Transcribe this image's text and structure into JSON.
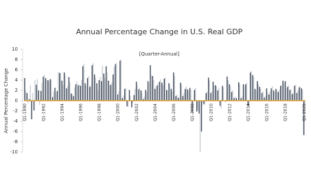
{
  "chart_data": {
    "type": "bar",
    "title": "Annual Percentage Change in U.S. Real GDP",
    "subtitle": "[Quarter-Annual]",
    "y_label": "Annual Percentage Change",
    "categories": [
      "Q1-1990",
      null,
      null,
      null,
      null,
      null,
      null,
      null,
      "Q1-1992",
      null,
      null,
      null,
      null,
      null,
      null,
      null,
      "Q1-1994",
      null,
      null,
      null,
      null,
      null,
      null,
      null,
      "Q1-1996",
      null,
      null,
      null,
      null,
      null,
      null,
      null,
      "Q1-1998",
      null,
      null,
      null,
      null,
      null,
      null,
      null,
      "Q1-2000",
      null,
      null,
      null,
      null,
      null,
      null,
      null,
      "Q1-2002",
      null,
      null,
      null,
      null,
      null,
      null,
      null,
      "Q1-2004",
      null,
      null,
      null,
      null,
      null,
      null,
      null,
      "Q1-2006",
      null,
      null,
      null,
      null,
      null,
      null,
      null,
      "Q1-2008",
      null,
      null,
      null,
      null,
      null,
      null,
      null,
      "Q1-2010",
      null,
      null,
      null,
      null,
      null,
      null,
      null,
      "Q1-2012",
      null,
      null,
      null,
      null,
      null,
      null,
      null,
      "Q1-2014",
      null,
      null,
      null,
      null,
      null,
      null,
      null,
      "Q1-2016",
      null,
      null,
      null,
      null,
      null,
      null,
      null,
      "Q1-2018",
      null,
      null,
      null,
      null,
      null,
      null,
      null,
      "Q1-2020"
    ],
    "series": [
      {
        "color": "#3b4656",
        "values": [
          4.4,
          1.5,
          0.3,
          -3.6,
          -1.9,
          3.1,
          2.0,
          1.9,
          4.7,
          4.4,
          4.0,
          4.2,
          0.7,
          2.5,
          1.9,
          5.4,
          3.9,
          5.5,
          2.4,
          4.6,
          1.4,
          0.9,
          3.2,
          3.0,
          2.9,
          6.7,
          3.4,
          4.4,
          2.7,
          6.9,
          5.1,
          3.4,
          4.0,
          3.8,
          5.3,
          6.7,
          3.9,
          3.1,
          5.1,
          7.1,
          1.2,
          7.8,
          0.5,
          2.3,
          -1.1,
          2.1,
          -1.3,
          1.1,
          3.7,
          2.2,
          2.0,
          0.3,
          2.1,
          3.8,
          6.9,
          4.8,
          2.3,
          3.0,
          3.7,
          3.5,
          4.3,
          2.1,
          3.4,
          2.3,
          5.5,
          0.9,
          0.6,
          3.5,
          0.9,
          2.3,
          2.2,
          2.5,
          -2.3,
          2.1,
          -2.1,
          -2.5,
          -6.0,
          -0.6,
          1.5,
          4.5,
          1.5,
          3.7,
          3.0,
          2.0,
          -1.0,
          2.9,
          -0.1,
          4.7,
          3.2,
          1.7,
          0.5,
          0.5,
          3.6,
          0.5,
          3.2,
          3.2,
          -1.1,
          5.5,
          5.0,
          2.3,
          3.8,
          2.7,
          1.5,
          0.6,
          2.4,
          1.2,
          2.4,
          2.0,
          2.3,
          1.7,
          2.9,
          3.9,
          3.8,
          2.7,
          2.1,
          1.3,
          2.9,
          1.5,
          2.6,
          2.4,
          -6.7
        ]
      },
      {
        "color": "#c9cdd3",
        "values": [
          2.0,
          -0.5,
          3.0,
          1.5,
          4.0,
          4.2,
          -0.8,
          3.5,
          5.0,
          4.0,
          3.8,
          4.1,
          1.8,
          1.5,
          5.6,
          5.4,
          3.0,
          5.0,
          2.8,
          3.6,
          1.2,
          2.6,
          3.8,
          3.2,
          4.0,
          7.2,
          3.0,
          4.8,
          3.0,
          7.3,
          4.5,
          2.0,
          4.6,
          6.8,
          4.5,
          5.5,
          3.0,
          3.6,
          6.6,
          7.4,
          1.8,
          8.0,
          1.0,
          2.5,
          -1.2,
          1.0,
          -0.5,
          2.3,
          3.0,
          2.5,
          1.5,
          0.8,
          1.7,
          3.5,
          5.0,
          4.0,
          2.8,
          3.5,
          4.2,
          3.0,
          4.5,
          2.0,
          3.0,
          1.8,
          4.8,
          1.2,
          0.4,
          3.1,
          1.5,
          2.8,
          2.0,
          2.2,
          -1.5,
          2.5,
          -1.8,
          -10.0,
          -1.0,
          -0.8,
          1.8,
          4.0,
          1.8,
          3.0,
          2.8,
          2.5,
          -1.5,
          2.6,
          -0.3,
          4.0,
          2.8,
          2.0,
          0.8,
          0.2,
          3.2,
          0.8,
          3.0,
          3.5,
          -1.0,
          5.8,
          4.6,
          2.0,
          3.2,
          2.3,
          1.8,
          0.9,
          1.6,
          1.8,
          2.8,
          1.7,
          2.0,
          2.2,
          3.0,
          3.5,
          2.5,
          3.0,
          2.2,
          1.5,
          3.1,
          2.0,
          2.8,
          2.1,
          -1.0
        ]
      }
    ],
    "axis_color": "#e0a030",
    "ylim": [
      -10,
      10
    ],
    "yticks": [
      -10,
      -8,
      -6,
      -4,
      -2,
      0,
      2,
      4,
      6,
      8,
      10
    ]
  }
}
